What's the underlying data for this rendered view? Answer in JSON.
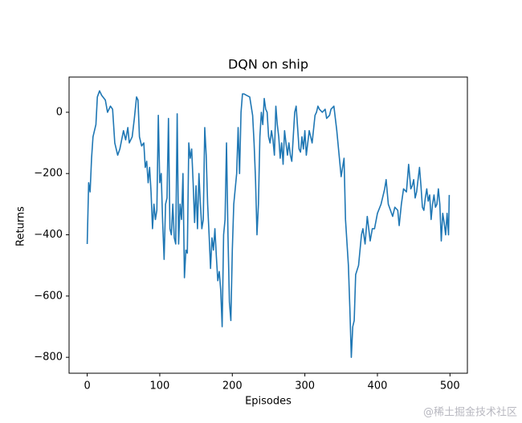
{
  "chart_data": {
    "type": "line",
    "title": "DQN on ship",
    "x_label": "Episodes",
    "y_label": "Returns",
    "color": "#1f77b4",
    "x": [
      0,
      2,
      4,
      6,
      8,
      12,
      14,
      17,
      20,
      25,
      28,
      32,
      35,
      38,
      42,
      45,
      50,
      53,
      56,
      58,
      62,
      65,
      68,
      70,
      72,
      75,
      78,
      80,
      82,
      84,
      86,
      88,
      90,
      92,
      94,
      96,
      98,
      100,
      102,
      104,
      106,
      108,
      110,
      112,
      114,
      116,
      118,
      120,
      122,
      124,
      126,
      128,
      130,
      132,
      134,
      136,
      138,
      140,
      142,
      144,
      146,
      148,
      150,
      152,
      154,
      156,
      158,
      160,
      162,
      164,
      166,
      168,
      170,
      172,
      174,
      176,
      178,
      180,
      182,
      184,
      186,
      188,
      190,
      192,
      194,
      196,
      198,
      200,
      202,
      204,
      206,
      208,
      210,
      212,
      214,
      216,
      220,
      224,
      226,
      228,
      230,
      232,
      234,
      236,
      238,
      240,
      242,
      244,
      246,
      248,
      250,
      252,
      254,
      256,
      258,
      260,
      262,
      264,
      266,
      268,
      270,
      272,
      274,
      276,
      278,
      280,
      282,
      284,
      286,
      288,
      290,
      292,
      294,
      296,
      298,
      300,
      302,
      306,
      310,
      314,
      316,
      318,
      320,
      324,
      328,
      330,
      334,
      336,
      340,
      344,
      348,
      350,
      354,
      356,
      360,
      362,
      364,
      366,
      368,
      370,
      374,
      378,
      380,
      383,
      386,
      390,
      393,
      396,
      400,
      405,
      410,
      412,
      415,
      418,
      421,
      424,
      428,
      430,
      433,
      436,
      440,
      443,
      446,
      448,
      450,
      452,
      454,
      456,
      458,
      460,
      462,
      464,
      466,
      468,
      470,
      472,
      474,
      476,
      478,
      480,
      482,
      484,
      486,
      488,
      490,
      492,
      494,
      496,
      498,
      499
    ],
    "values": [
      -430,
      -230,
      -260,
      -150,
      -80,
      -40,
      50,
      70,
      55,
      40,
      0,
      20,
      10,
      -100,
      -140,
      -120,
      -60,
      -90,
      -50,
      -100,
      -80,
      -20,
      50,
      40,
      -80,
      -110,
      -100,
      -180,
      -160,
      -230,
      -180,
      -260,
      -380,
      -300,
      -350,
      -320,
      -10,
      -230,
      -200,
      -360,
      -480,
      -300,
      -280,
      -20,
      -380,
      -400,
      -300,
      -410,
      -430,
      -5,
      -430,
      -300,
      -350,
      -200,
      -540,
      -450,
      -460,
      -100,
      -150,
      -120,
      -230,
      -360,
      -240,
      -380,
      -200,
      -300,
      -380,
      -350,
      -50,
      -140,
      -300,
      -400,
      -510,
      -410,
      -450,
      -380,
      -470,
      -550,
      -520,
      -580,
      -700,
      -400,
      -350,
      -100,
      -400,
      -620,
      -680,
      -450,
      -300,
      -250,
      -200,
      -50,
      -200,
      0,
      60,
      60,
      55,
      50,
      20,
      -10,
      -100,
      -220,
      -400,
      -300,
      -80,
      0,
      -40,
      45,
      10,
      0,
      -80,
      -100,
      -60,
      -90,
      -140,
      20,
      -40,
      -80,
      -150,
      -100,
      -170,
      -60,
      -100,
      -140,
      -100,
      -140,
      -160,
      -80,
      0,
      20,
      -50,
      -120,
      -130,
      -80,
      -120,
      -60,
      -140,
      -60,
      -100,
      -10,
      0,
      20,
      10,
      0,
      10,
      -20,
      -10,
      10,
      20,
      -60,
      -160,
      -210,
      -150,
      -350,
      -500,
      -640,
      -800,
      -700,
      -680,
      -530,
      -500,
      -400,
      -380,
      -430,
      -340,
      -420,
      -380,
      -380,
      -330,
      -300,
      -250,
      -220,
      -300,
      -320,
      -340,
      -310,
      -320,
      -370,
      -300,
      -250,
      -260,
      -170,
      -250,
      -240,
      -220,
      -280,
      -260,
      -220,
      -180,
      -240,
      -310,
      -320,
      -280,
      -250,
      -290,
      -270,
      -350,
      -300,
      -270,
      -310,
      -300,
      -250,
      -300,
      -420,
      -330,
      -360,
      -400,
      -330,
      -400,
      -270
    ],
    "xlim": [
      -25,
      524
    ],
    "ylim": [
      -852,
      115
    ],
    "xticks": [
      0,
      100,
      200,
      300,
      400,
      500
    ],
    "yticks": [
      {
        "value": -800,
        "label": "−800"
      },
      {
        "value": -600,
        "label": "−600"
      },
      {
        "value": -400,
        "label": "−400"
      },
      {
        "value": -200,
        "label": "−200"
      },
      0
    ],
    "grid": false
  },
  "watermark": "@稀土掘金技术社区"
}
